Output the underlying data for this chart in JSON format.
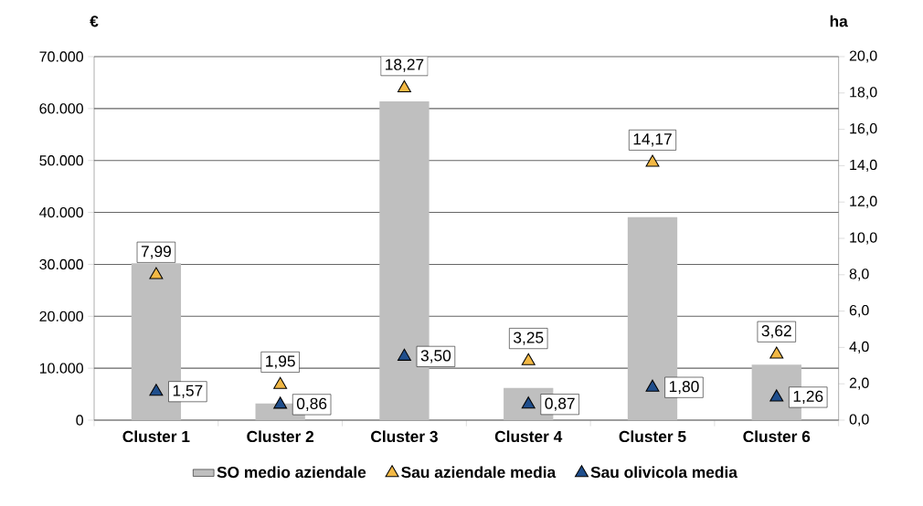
{
  "chart_data": {
    "type": "bar",
    "ylabel": "€",
    "y2label": "ha",
    "categories": [
      "Cluster 1",
      "Cluster 2",
      "Cluster 3",
      "Cluster 4",
      "Cluster 5",
      "Cluster 6"
    ],
    "series": [
      {
        "name": "SO medio aziendale",
        "color": "#bfbfbf",
        "values": [
          30200,
          3200,
          61400,
          6200,
          39100,
          10700
        ]
      },
      {
        "name": "Sau aziendale media",
        "type": "scatter",
        "axis": "y2",
        "marker": "triangle",
        "color": "#f2b844",
        "values": [
          7.99,
          1.95,
          18.27,
          3.25,
          14.17,
          3.62
        ],
        "value_labels": [
          "7,99",
          "1,95",
          "18,27",
          "3,25",
          "14,17",
          "3,62"
        ]
      },
      {
        "name": "Sau olivicola media",
        "type": "scatter",
        "axis": "y2",
        "marker": "triangle",
        "color": "#1f4e8c",
        "values": [
          1.57,
          0.86,
          3.5,
          0.87,
          1.8,
          1.26
        ],
        "value_labels": [
          "1,57",
          "0,86",
          "3,50",
          "0,87",
          "1,80",
          "1,26"
        ]
      }
    ],
    "ylim": [
      0,
      70000
    ],
    "yticks": [
      {
        "value": 0,
        "label": "0"
      },
      {
        "value": 10000,
        "label": "10.000"
      },
      {
        "value": 20000,
        "label": "20.000"
      },
      {
        "value": 30000,
        "label": "30.000"
      },
      {
        "value": 40000,
        "label": "40.000"
      },
      {
        "value": 50000,
        "label": "50.000"
      },
      {
        "value": 60000,
        "label": "60.000"
      },
      {
        "value": 70000,
        "label": "70.000"
      }
    ],
    "y2lim": [
      0,
      20
    ],
    "y2ticks": [
      {
        "value": 0,
        "label": "0,0"
      },
      {
        "value": 2,
        "label": "2,0"
      },
      {
        "value": 4,
        "label": "4,0"
      },
      {
        "value": 6,
        "label": "6,0"
      },
      {
        "value": 8,
        "label": "8,0"
      },
      {
        "value": 10,
        "label": "10,0"
      },
      {
        "value": 12,
        "label": "12,0"
      },
      {
        "value": 14,
        "label": "14,0"
      },
      {
        "value": 16,
        "label": "16,0"
      },
      {
        "value": 18,
        "label": "18,0"
      },
      {
        "value": 20,
        "label": "20,0"
      }
    ],
    "grid": "y",
    "legend": "bottom"
  }
}
